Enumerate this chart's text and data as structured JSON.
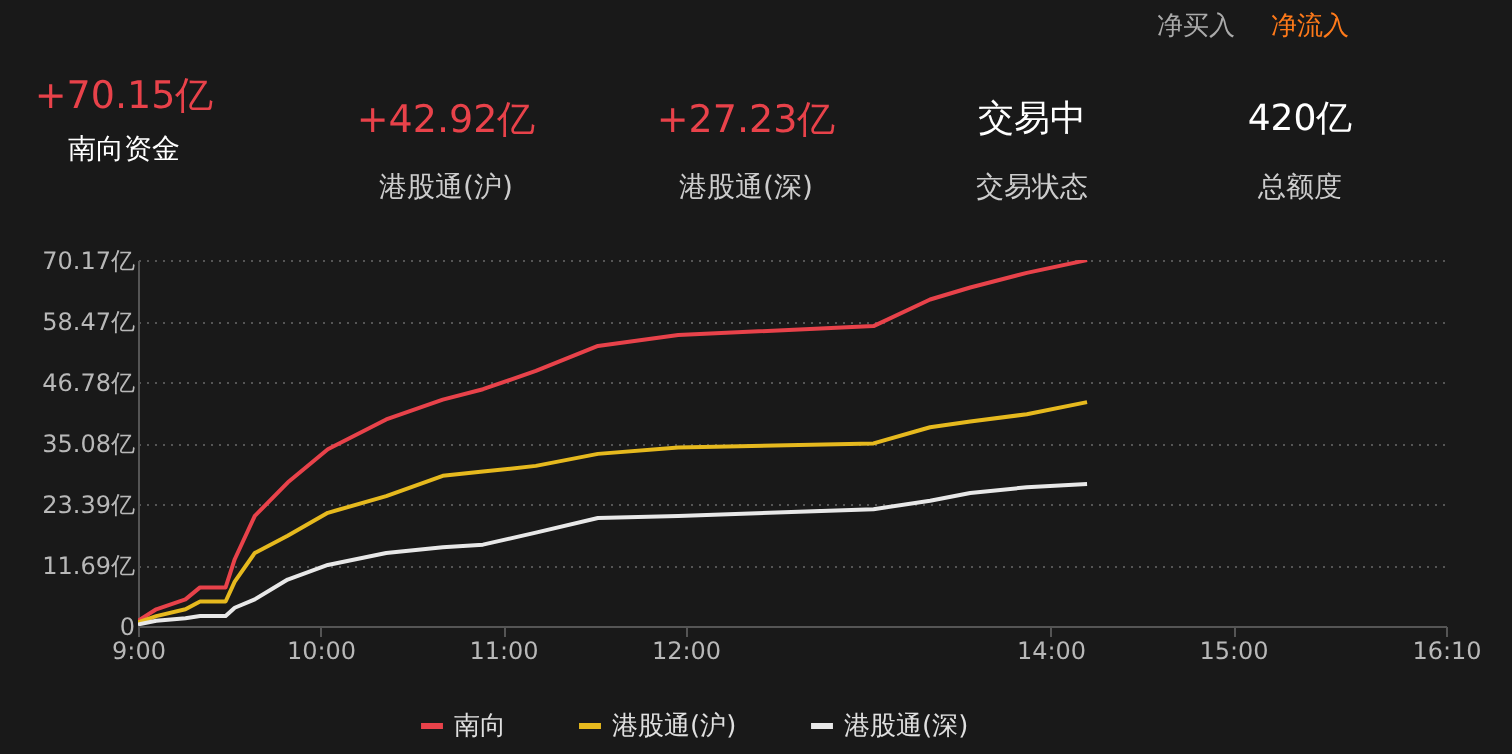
{
  "chart_data": {
    "type": "line",
    "annotations": [
      "净买入",
      "净流入",
      "+70.15亿",
      "南向资金",
      "+42.92亿",
      "港股通(沪)",
      "+27.23亿",
      "港股通(深)",
      "交易中",
      "交易状态",
      "420亿",
      "总额度"
    ],
    "x": [
      9,
      9.1,
      9.26,
      9.34,
      9.48,
      9.53,
      9.64,
      9.82,
      10.04,
      10.36,
      10.67,
      10.89,
      11.18,
      11.52,
      11.96,
      13.03,
      13.34,
      13.56,
      13.87,
      14.2
    ],
    "series": [
      {
        "name": "南向",
        "color": "#e8424a",
        "values": [
          1.0,
          3.2,
          5.1,
          7.4,
          7.4,
          12.8,
          21.1,
          27.5,
          33.9,
          39.6,
          43.4,
          45.4,
          48.9,
          53.7,
          55.8,
          57.5,
          62.6,
          64.9,
          67.7,
          70.15
        ]
      },
      {
        "name": "港股通(沪)",
        "color": "#e6b91e",
        "values": [
          0.7,
          1.9,
          3.2,
          4.7,
          4.7,
          8.5,
          14.0,
          17.3,
          21.7,
          24.9,
          28.8,
          29.6,
          30.7,
          33.0,
          34.2,
          35.0,
          38.1,
          39.2,
          40.6,
          42.92
        ]
      },
      {
        "name": "港股通(深)",
        "color": "#e8e8e8",
        "values": [
          0.3,
          1.0,
          1.5,
          1.9,
          1.9,
          3.5,
          5.1,
          8.9,
          11.7,
          14.0,
          15.1,
          15.6,
          17.9,
          20.7,
          21.1,
          22.4,
          24.0,
          25.5,
          26.6,
          27.23
        ]
      }
    ],
    "xlim": [
      9,
      16.1667
    ],
    "xticks": [
      {
        "value": 9,
        "label": "9:00"
      },
      {
        "value": 10,
        "label": "10:00"
      },
      {
        "value": 11,
        "label": "11:00"
      },
      {
        "value": 12,
        "label": "12:00"
      },
      {
        "value": 14,
        "label": "14:00"
      },
      {
        "value": 15,
        "label": "15:00"
      },
      {
        "value": 16.1667,
        "label": "16:10"
      }
    ],
    "ylim": [
      0,
      70.17
    ],
    "yticks": [
      0,
      {
        "value": 11.69,
        "label": "11.69亿"
      },
      {
        "value": 23.39,
        "label": "23.39亿"
      },
      {
        "value": 35.08,
        "label": "35.08亿"
      },
      {
        "value": 46.78,
        "label": "46.78亿"
      },
      {
        "value": 58.47,
        "label": "58.47亿"
      },
      {
        "value": 70.17,
        "label": "70.17亿"
      }
    ],
    "grid": "y",
    "legend": "bottom",
    "marker": "none",
    "line_style": "solid"
  }
}
